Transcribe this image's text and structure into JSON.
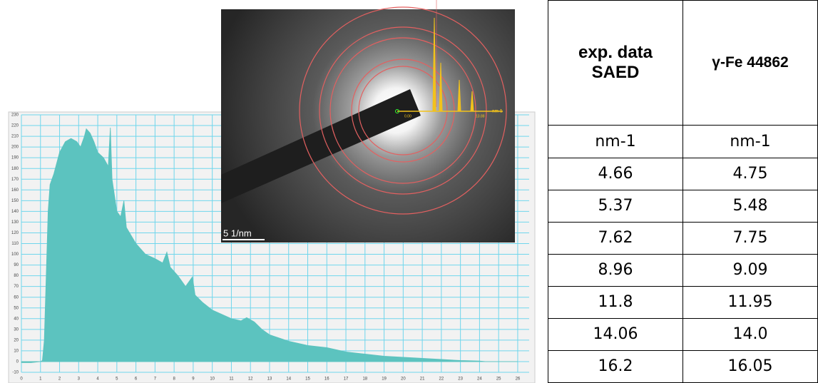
{
  "chart_data": {
    "type": "area",
    "x": [
      0,
      0.5,
      1.0,
      1.1,
      1.2,
      1.3,
      1.4,
      1.5,
      1.7,
      2.0,
      2.3,
      2.6,
      2.9,
      3.1,
      3.3,
      3.4,
      3.6,
      3.8,
      4.0,
      4.3,
      4.55,
      4.66,
      4.75,
      5.0,
      5.2,
      5.37,
      5.5,
      6.0,
      6.5,
      7.0,
      7.4,
      7.62,
      7.8,
      8.2,
      8.6,
      8.96,
      9.1,
      9.5,
      10,
      10.5,
      11,
      11.5,
      11.8,
      12.2,
      12.6,
      13,
      13.5,
      14,
      14.5,
      15,
      15.5,
      16,
      16.5,
      17,
      18,
      19,
      20,
      21,
      22,
      23,
      24,
      24.3,
      25,
      26
    ],
    "values": [
      -1,
      -1,
      0,
      1,
      20,
      80,
      140,
      165,
      175,
      195,
      205,
      208,
      205,
      200,
      210,
      217,
      213,
      205,
      195,
      190,
      182,
      218,
      170,
      140,
      135,
      150,
      125,
      110,
      100,
      96,
      92,
      102,
      88,
      80,
      70,
      79,
      62,
      55,
      48,
      44,
      40,
      38,
      41,
      37,
      30,
      25,
      22,
      19,
      17,
      15,
      14,
      13,
      11,
      9,
      7,
      5,
      4,
      3,
      2,
      1,
      0.5,
      0,
      0,
      0
    ],
    "color": "#5cc3bf",
    "xlim": [
      0,
      26.6
    ],
    "xticks": [
      0,
      1,
      2,
      3,
      4,
      5,
      6,
      7,
      8,
      9,
      10,
      11,
      12,
      13,
      14,
      15,
      16,
      17,
      18,
      19,
      20,
      21,
      22,
      23,
      24,
      25,
      26
    ],
    "ylim": [
      -10,
      230
    ],
    "yticks": [
      -10,
      0,
      10,
      20,
      30,
      40,
      50,
      60,
      70,
      80,
      90,
      100,
      110,
      120,
      130,
      140,
      150,
      160,
      170,
      180,
      190,
      200,
      210,
      220,
      230
    ],
    "grid": true,
    "grid_color": "#6fd6ec"
  },
  "image": {
    "scale_label": "5 1/nm",
    "profile_labels": [
      "0.00",
      "13.88",
      "nm-1"
    ]
  },
  "table": {
    "header": [
      "exp. data SAED",
      "γ-Fe 44862"
    ],
    "rows": [
      [
        "nm-1",
        "nm-1"
      ],
      [
        "4.66",
        "4.75"
      ],
      [
        "5.37",
        "5.48"
      ],
      [
        "7.62",
        "7.75"
      ],
      [
        "8.96",
        "9.09"
      ],
      [
        "11.8",
        "11.95"
      ],
      [
        "14.06",
        "14.0"
      ],
      [
        "16.2",
        "16.05"
      ]
    ]
  }
}
